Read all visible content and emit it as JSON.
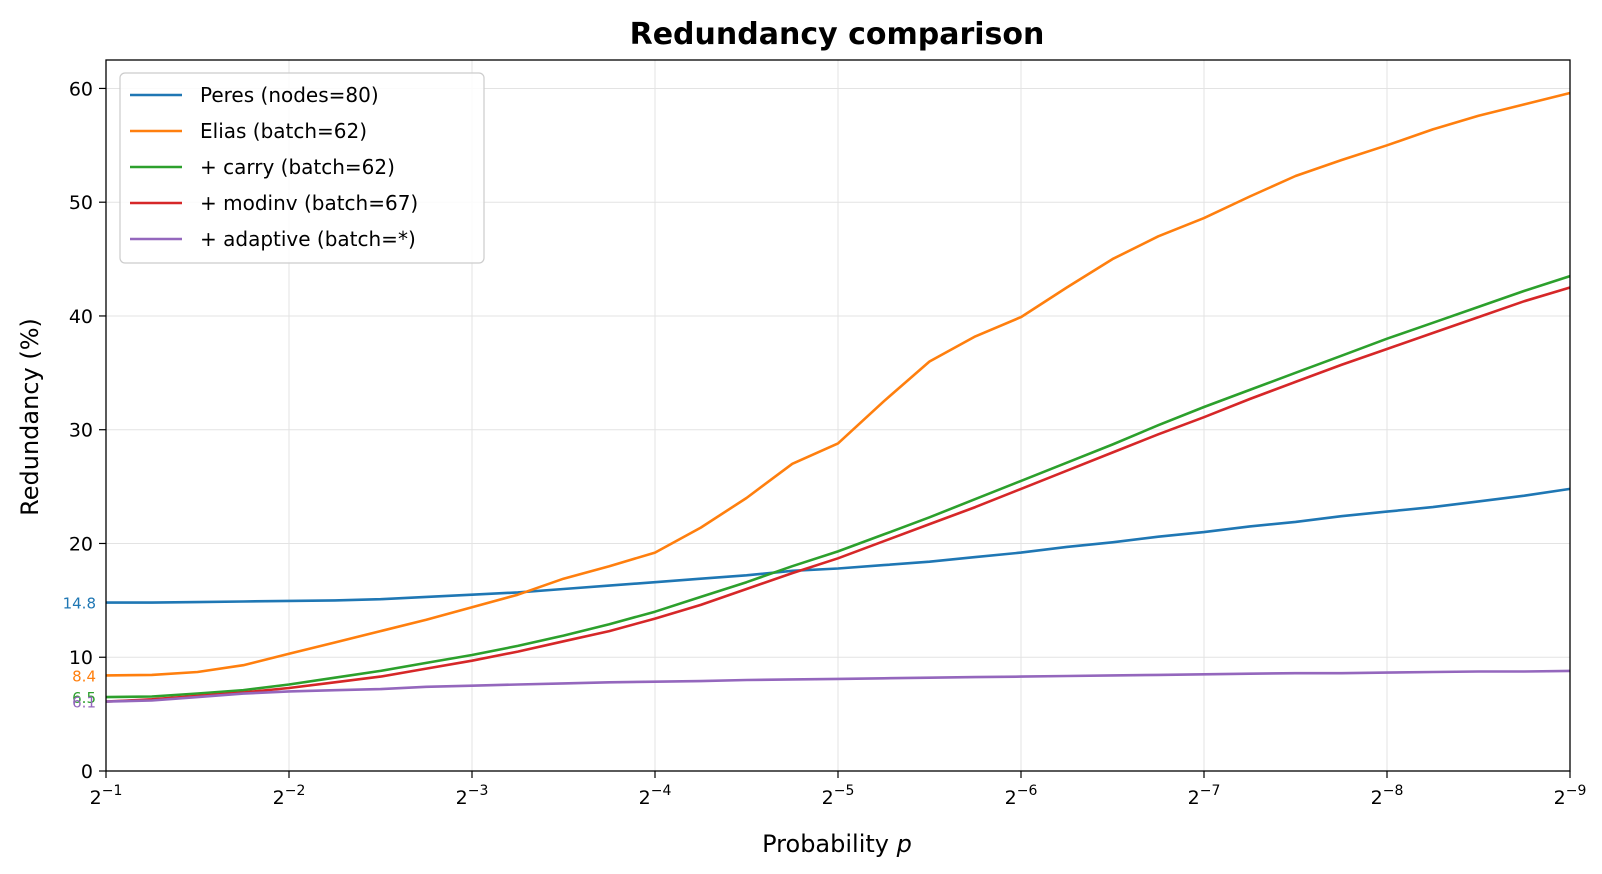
{
  "chart_data": {
    "type": "line",
    "title": "Redundancy comparison",
    "xlabel": "Probability",
    "xlabel_var": "p",
    "ylabel": "Redundancy (%)",
    "x_scale": "log2-reciprocal",
    "xlim_exponent": [
      -1,
      -9
    ],
    "ylim": [
      0,
      62.5
    ],
    "grid": true,
    "legend_position": "top-left",
    "x_tick_exponents": [
      "-1",
      "-2",
      "-3",
      "-4",
      "-5",
      "-6",
      "-7",
      "-8",
      "-9"
    ],
    "y_ticks": [
      0,
      10,
      20,
      30,
      40,
      50,
      60
    ],
    "x_exponent": [
      -1,
      -1.25,
      -1.5,
      -1.75,
      -2,
      -2.25,
      -2.5,
      -2.75,
      -3,
      -3.25,
      -3.5,
      -3.75,
      -4,
      -4.25,
      -4.5,
      -4.75,
      -5,
      -5.25,
      -5.5,
      -5.75,
      -6,
      -6.25,
      -6.5,
      -6.75,
      -7,
      -7.25,
      -7.5,
      -7.75,
      -8,
      -8.25,
      -8.5,
      -8.75,
      -9
    ],
    "series": [
      {
        "name": "Peres (nodes=80)",
        "color": "#1f77b4",
        "end_label": "14.8",
        "values": [
          14.8,
          14.8,
          14.85,
          14.9,
          14.95,
          15.0,
          15.1,
          15.3,
          15.5,
          15.7,
          16.0,
          16.3,
          16.6,
          16.9,
          17.2,
          17.6,
          17.8,
          18.1,
          18.4,
          18.8,
          19.2,
          19.7,
          20.1,
          20.6,
          21.0,
          21.5,
          21.9,
          22.4,
          22.8,
          23.2,
          23.7,
          24.2,
          24.8
        ]
      },
      {
        "name": "Elias (batch=62)",
        "color": "#ff7f0e",
        "end_label": "8.4",
        "values": [
          8.4,
          8.45,
          8.7,
          9.3,
          10.3,
          11.3,
          12.3,
          13.3,
          14.4,
          15.5,
          16.9,
          18.0,
          19.2,
          21.4,
          24.0,
          27.0,
          28.8,
          32.5,
          36.0,
          38.2,
          39.9,
          42.5,
          45.0,
          47.0,
          48.6,
          50.5,
          52.3,
          53.7,
          55.0,
          56.4,
          57.6,
          58.6,
          59.6
        ]
      },
      {
        "name": "+ carry (batch=62)",
        "color": "#2ca02c",
        "end_label": "6.5",
        "values": [
          6.5,
          6.55,
          6.8,
          7.1,
          7.6,
          8.2,
          8.8,
          9.5,
          10.2,
          11.0,
          11.9,
          12.9,
          14.0,
          15.3,
          16.6,
          18.0,
          19.3,
          20.8,
          22.3,
          23.9,
          25.5,
          27.1,
          28.7,
          30.4,
          32.0,
          33.5,
          35.0,
          36.5,
          38.0,
          39.4,
          40.8,
          42.2,
          43.5
        ]
      },
      {
        "name": "+ modinv (batch=67)",
        "color": "#d62728",
        "end_label": "",
        "values": [
          6.1,
          6.3,
          6.6,
          6.9,
          7.3,
          7.8,
          8.3,
          9.0,
          9.7,
          10.5,
          11.4,
          12.3,
          13.4,
          14.6,
          16.0,
          17.4,
          18.7,
          20.2,
          21.7,
          23.2,
          24.8,
          26.4,
          28.0,
          29.6,
          31.1,
          32.7,
          34.2,
          35.7,
          37.1,
          38.5,
          39.9,
          41.3,
          42.5
        ]
      },
      {
        "name": "+ adaptive (batch=*)",
        "color": "#9467bd",
        "end_label": "6.1",
        "values": [
          6.1,
          6.2,
          6.5,
          6.8,
          7.0,
          7.1,
          7.2,
          7.4,
          7.5,
          7.6,
          7.7,
          7.8,
          7.85,
          7.9,
          8.0,
          8.05,
          8.1,
          8.15,
          8.2,
          8.25,
          8.3,
          8.35,
          8.4,
          8.45,
          8.5,
          8.55,
          8.6,
          8.6,
          8.65,
          8.7,
          8.75,
          8.75,
          8.8
        ]
      }
    ]
  }
}
